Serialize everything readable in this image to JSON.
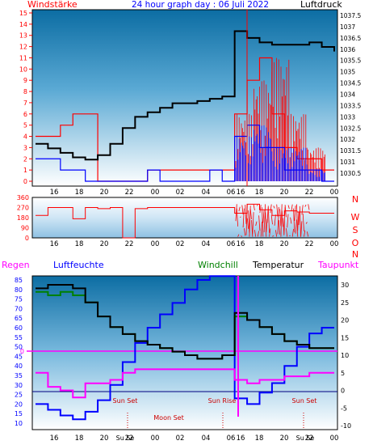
{
  "top": {
    "left_label": "Windstärke",
    "title": "24 hour graph day : 06 Juli 2022",
    "right_label": "Luftdruck",
    "left_ticks": [
      "0",
      "1",
      "2",
      "3",
      "4",
      "5",
      "6",
      "7",
      "8",
      "9",
      "10",
      "11",
      "12",
      "13",
      "14",
      "15"
    ],
    "right_ticks": [
      "1030.5",
      "1031",
      "1031.5",
      "1032",
      "1032.5",
      "1033",
      "1033.5",
      "1034",
      "1034.5",
      "1035",
      "1035.5",
      "1036",
      "1036.5",
      "1037",
      "1037.5"
    ],
    "x_ticks": [
      "16",
      "18",
      "20",
      "22",
      "00",
      "02",
      "04",
      "06",
      "16",
      "18",
      "20",
      "22",
      "00"
    ]
  },
  "middle": {
    "left_ticks": [
      "0",
      "90",
      "180",
      "270",
      "360"
    ],
    "right_labels": [
      "N",
      "W",
      "S",
      "O",
      "N"
    ],
    "x_ticks": [
      "16",
      "18",
      "20",
      "22",
      "00",
      "02",
      "04",
      "06",
      "16",
      "18",
      "20",
      "22",
      "00"
    ]
  },
  "bottom": {
    "labels": {
      "regen": "Regen",
      "luftfeuchte": "Luftfeuchte",
      "windchill": "Windchill",
      "temperatur": "Temperatur",
      "taupunkt": "Taupunkt"
    },
    "left_ticks": [
      "10",
      "15",
      "20",
      "25",
      "30",
      "35",
      "40",
      "45",
      "50",
      "55",
      "60",
      "65",
      "70",
      "75",
      "80",
      "85"
    ],
    "right_ticks": [
      "-10",
      "-5",
      "0",
      "5",
      "10",
      "15",
      "20",
      "25",
      "30"
    ],
    "regen_zero": "0",
    "x_ticks": [
      "16",
      "18",
      "20",
      "22",
      "00",
      "02",
      "04",
      "06",
      "16",
      "18",
      "20",
      "22",
      "00"
    ],
    "x_tick_extras": [
      "Su Se",
      "Su Se"
    ],
    "annotations": [
      "Sun Set",
      "Moon Set",
      "Sun Rise",
      "Sun Set"
    ]
  },
  "colors": {
    "wind": "#ff0000",
    "gust": "#0000ff",
    "pressure": "#000000",
    "direction": "#ff0000",
    "humidity": "#0000ff",
    "windchill": "#008000",
    "temperature": "#000000",
    "dewpoint": "#ff00ff"
  },
  "chart_data": [
    {
      "type": "line",
      "title": "24 hour graph day : 06 Juli 2022",
      "y_left": "Windstärke",
      "y_right": "Luftdruck",
      "ylim_left": [
        0,
        15
      ],
      "ylim_right": [
        1030,
        1038
      ],
      "series": [
        {
          "name": "Luftdruck",
          "values": [
            1031.8,
            1031.6,
            1031.4,
            1031.2,
            1031.1,
            1031.3,
            1031.8,
            1032.5,
            1033.0,
            1033.2,
            1033.4,
            1033.6,
            1033.6,
            1033.7,
            1033.8,
            1033.9,
            1036.8,
            1036.5,
            1036.3,
            1036.2,
            1036.2,
            1036.2,
            1036.3,
            1036.1,
            1035.9
          ]
        },
        {
          "values": [
            4,
            4,
            5,
            6,
            6,
            0,
            0,
            0,
            0,
            1,
            1,
            1,
            1,
            1,
            1,
            1,
            6,
            9,
            11,
            6,
            3,
            2,
            2,
            1,
            1
          ]
        },
        {
          "values": [
            2,
            2,
            1,
            1,
            0,
            0,
            0,
            0,
            0,
            1,
            0,
            0,
            0,
            0,
            1,
            0,
            4,
            5,
            3,
            3,
            1,
            1,
            1,
            0,
            0
          ]
        }
      ]
    },
    {
      "type": "line",
      "ylim": [
        0,
        360
      ],
      "series": [
        {
          "values": [
            200,
            270,
            270,
            170,
            270,
            260,
            270,
            0,
            260,
            270,
            270,
            270,
            270,
            270,
            270,
            270,
            220,
            300,
            250,
            200,
            240,
            230,
            220,
            220,
            220
          ]
        }
      ]
    },
    {
      "type": "line",
      "ylim_left": [
        10,
        88
      ],
      "ylim_right": [
        -10,
        32
      ],
      "series": [
        {
          "name": "Luftfeuchte",
          "values": [
            20,
            17,
            14,
            12,
            16,
            22,
            30,
            42,
            52,
            60,
            67,
            73,
            80,
            85,
            87,
            87,
            23,
            20,
            26,
            31,
            40,
            50,
            57,
            60,
            60
          ]
        },
        {
          "name": "Windchill",
          "values": [
            28,
            27,
            28,
            27,
            25,
            21,
            18,
            16,
            14,
            13,
            12,
            11,
            10,
            9,
            9,
            10,
            21,
            20,
            18,
            16,
            14,
            13,
            12,
            12,
            12
          ]
        },
        {
          "name": "Temperatur",
          "values": [
            29,
            30,
            30,
            29,
            25,
            21,
            18,
            16,
            14,
            13,
            12,
            11,
            10,
            9,
            9,
            10,
            22,
            20,
            18,
            16,
            14,
            13,
            12,
            12,
            12
          ]
        },
        {
          "name": "Taupunkt",
          "values": [
            5,
            1,
            0,
            -2,
            2,
            2,
            3,
            5,
            6,
            6,
            6,
            6,
            6,
            6,
            6,
            6,
            3,
            2,
            3,
            3,
            4,
            4,
            5,
            5,
            5
          ]
        }
      ]
    }
  ]
}
